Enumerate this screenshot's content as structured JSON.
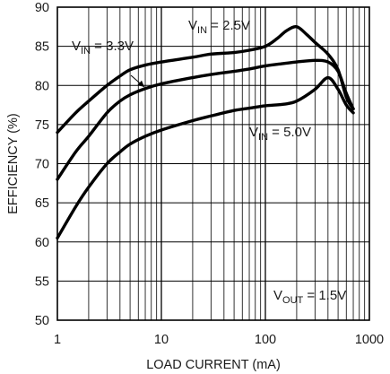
{
  "chart_data": {
    "type": "line",
    "title": "",
    "xlabel": "LOAD CURRENT (mA)",
    "ylabel": "EFFICIENCY (%)",
    "x_scale": "log",
    "xlim": [
      1,
      1000
    ],
    "ylim": [
      50,
      90
    ],
    "x_tick_labels": [
      "1",
      "10",
      "100",
      "1000"
    ],
    "y_tick_labels": [
      "50",
      "55",
      "60",
      "65",
      "70",
      "75",
      "80",
      "85",
      "90"
    ],
    "grid": true,
    "series": [
      {
        "name": "VIN = 2.5V",
        "label_main": "V",
        "label_sub": "IN",
        "label_rest": " = 2.5V",
        "x": [
          1,
          1.5,
          2,
          3,
          4,
          5,
          7,
          10,
          20,
          30,
          50,
          70,
          100,
          130,
          160,
          200,
          250,
          300,
          400,
          500,
          600,
          700
        ],
        "y": [
          74,
          76.5,
          78,
          80,
          81.2,
          82,
          82.6,
          83,
          83.6,
          84,
          84.2,
          84.5,
          85,
          86,
          87,
          87.5,
          86.5,
          85.5,
          84,
          82,
          78.5,
          77
        ]
      },
      {
        "name": "VIN = 3.3V",
        "label_main": "V",
        "label_sub": "IN",
        "label_rest": " = 3.3V",
        "x": [
          1,
          1.5,
          2,
          3,
          4,
          5,
          7,
          10,
          20,
          30,
          50,
          70,
          100,
          150,
          200,
          300,
          400,
          500,
          600,
          700
        ],
        "y": [
          68,
          71.5,
          73.5,
          76.5,
          78,
          78.8,
          79.6,
          80.2,
          81,
          81.4,
          81.8,
          82.1,
          82.5,
          82.8,
          83,
          83.2,
          83,
          81.8,
          79,
          77
        ]
      },
      {
        "name": "VIN = 5.0V",
        "label_main": "V",
        "label_sub": "IN",
        "label_rest": " = 5.0V",
        "x": [
          1,
          1.5,
          2,
          3,
          4,
          5,
          7,
          10,
          20,
          30,
          50,
          70,
          100,
          150,
          200,
          300,
          400,
          500,
          600,
          700
        ],
        "y": [
          60.5,
          64.5,
          67,
          70,
          71.5,
          72.5,
          73.5,
          74.3,
          75.5,
          76.1,
          76.8,
          77.1,
          77.4,
          77.6,
          78,
          79.5,
          81,
          79.5,
          77.5,
          76.5
        ]
      }
    ],
    "annotations": [
      {
        "label_main": "V",
        "label_sub": "OUT",
        "label_rest": " = 1.5V"
      }
    ]
  }
}
